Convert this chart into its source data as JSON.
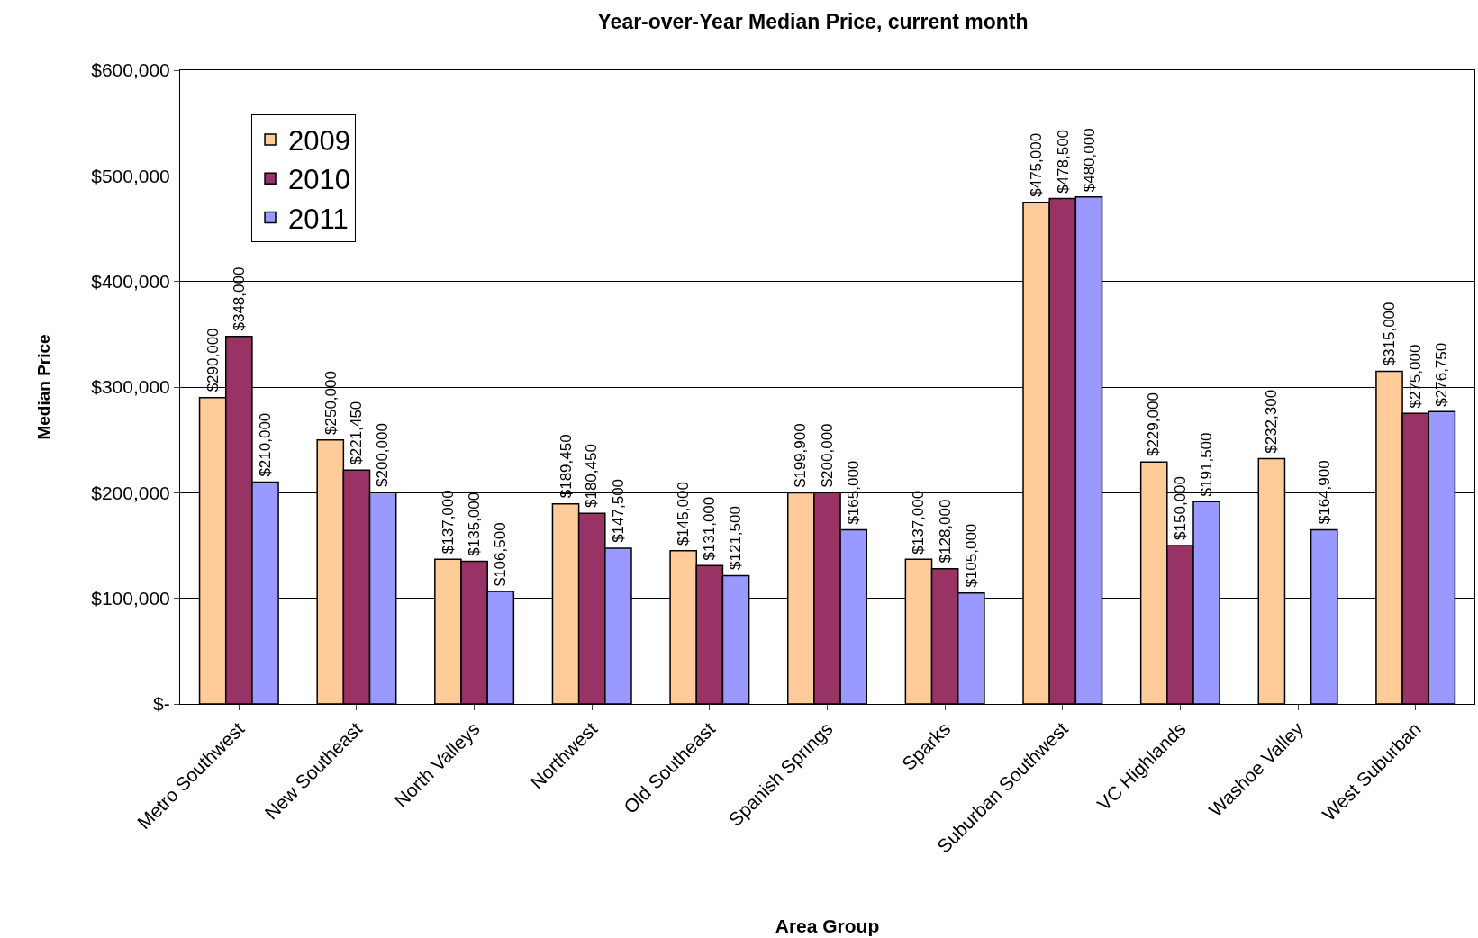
{
  "chart_data": {
    "type": "bar",
    "title": "Year-over-Year Median Price, current month",
    "xlabel": "Area Group",
    "ylabel": "Median Price",
    "categories": [
      "Metro Southwest",
      "New Southeast",
      "North Valleys",
      "Northwest",
      "Old Southeast",
      "Spanish Springs",
      "Sparks",
      "Suburban Southwest",
      "VC Highlands",
      "Washoe Valley",
      "West Suburban"
    ],
    "series": [
      {
        "name": "2009",
        "color": "#ffcc99",
        "values": [
          290000,
          250000,
          137000,
          189450,
          145000,
          199900,
          137000,
          475000,
          229000,
          232300,
          315000
        ],
        "value_labels": [
          "$290,000",
          "$250,000",
          "$137,000",
          "$189,450",
          "$145,000",
          "$199,900",
          "$137,000",
          "$475,000",
          "$229,000",
          "$232,300",
          "$315,000"
        ]
      },
      {
        "name": "2010",
        "color": "#993366",
        "values": [
          348000,
          221450,
          135000,
          180450,
          131000,
          200000,
          128000,
          478500,
          150000,
          null,
          275000
        ],
        "value_labels": [
          "$348,000",
          "$221,450",
          "$135,000",
          "$180,450",
          "$131,000",
          "$200,000",
          "$128,000",
          "$478,500",
          "$150,000",
          null,
          "$275,000"
        ]
      },
      {
        "name": "2011",
        "color": "#9999ff",
        "values": [
          210000,
          200000,
          106500,
          147500,
          121500,
          165000,
          105000,
          480000,
          191500,
          164900,
          276750
        ],
        "value_labels": [
          "$210,000",
          "$200,000",
          "$106,500",
          "$147,500",
          "$121,500",
          "$165,000",
          "$105,000",
          "$480,000",
          "$191,500",
          "$164,900",
          "$276,750"
        ]
      }
    ],
    "ylim": [
      0,
      600000
    ],
    "yticks": [
      {
        "value": 0,
        "label": "$-"
      },
      {
        "value": 100000,
        "label": "$100,000"
      },
      {
        "value": 200000,
        "label": "$200,000"
      },
      {
        "value": 300000,
        "label": "$300,000"
      },
      {
        "value": 400000,
        "label": "$400,000"
      },
      {
        "value": 500000,
        "label": "$500,000"
      },
      {
        "value": 600000,
        "label": "$600,000"
      }
    ],
    "grid": "y",
    "legend": "top left"
  }
}
